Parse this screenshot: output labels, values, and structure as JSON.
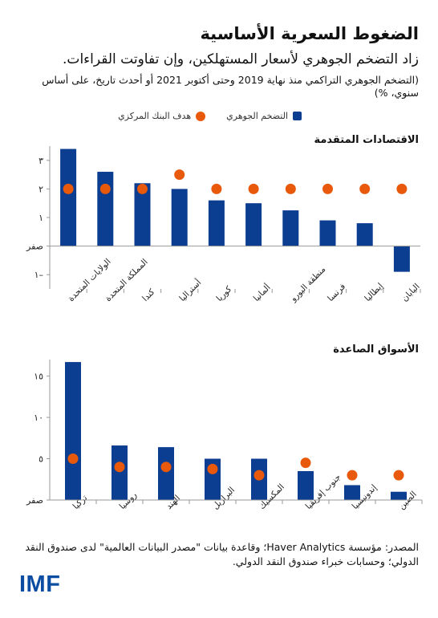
{
  "title": "الضغوط السعرية الأساسية",
  "subtitle": "زاد التضخم الجوهري لأسعار المستهلكين، وإن تفاوتت القراءات.",
  "note": "(التضخم الجوهري التراكمي منذ نهاية 2019 وحتى أكتوبر 2021 أو أحدث تاريخ، على أساس سنوي، %)",
  "legend": {
    "core": "التضخم الجوهري",
    "target": "هدف البنك المركزي"
  },
  "source": "المصدر: مؤسسة Haver Analytics؛ وقاعدة بيانات \"مصدر البيانات العالمية\" لدى صندوق النقد الدولي؛ وحسابات خبراء صندوق النقد الدولي.",
  "logo": "IMF",
  "colors": {
    "bar": "#0b3d91",
    "target": "#e8590c",
    "axis": "#999999"
  },
  "chart_data": [
    {
      "type": "bar",
      "title": "الاقتصادات المتقدمة",
      "categories": [
        "الولايات المتحدة",
        "المملكة المتحدة",
        "كندا",
        "أستراليا",
        "كوريا",
        "ألمانيا",
        "منطقة اليورو",
        "فرنسا",
        "إيطاليا",
        "اليابان"
      ],
      "series": [
        {
          "name": "التضخم الجوهري",
          "values": [
            3.4,
            2.6,
            2.2,
            2.0,
            1.6,
            1.5,
            1.25,
            0.9,
            0.8,
            -0.9
          ]
        },
        {
          "name": "هدف البنك المركزي",
          "values": [
            2,
            2,
            2,
            2.5,
            2,
            2,
            2,
            2,
            2,
            2
          ]
        }
      ],
      "yticks": [
        {
          "v": 3,
          "label": "٣"
        },
        {
          "v": 2,
          "label": "٢"
        },
        {
          "v": 1,
          "label": "١"
        },
        {
          "v": 0,
          "label": "صفر"
        },
        {
          "v": -1,
          "label": "١–"
        }
      ],
      "ylim": [
        -1.5,
        3.5
      ]
    },
    {
      "type": "bar",
      "title": "الأسواق الصاعدة",
      "categories": [
        "تركيا",
        "روسيا",
        "الهند",
        "البرازيل",
        "المكسيك",
        "جنوب إفريقيا",
        "إندونيسيا",
        "الصين"
      ],
      "series": [
        {
          "name": "التضخم الجوهري",
          "values": [
            16.7,
            6.6,
            6.4,
            5.0,
            5.0,
            3.5,
            1.8,
            1.0
          ]
        },
        {
          "name": "هدف البنك المركزي",
          "values": [
            5,
            4,
            4,
            3.75,
            3,
            4.5,
            3,
            3
          ]
        }
      ],
      "yticks": [
        {
          "v": 15,
          "label": "١٥"
        },
        {
          "v": 10,
          "label": "١٠"
        },
        {
          "v": 5,
          "label": "٥"
        },
        {
          "v": 0,
          "label": "صفر"
        }
      ],
      "ylim": [
        0,
        17
      ]
    }
  ]
}
